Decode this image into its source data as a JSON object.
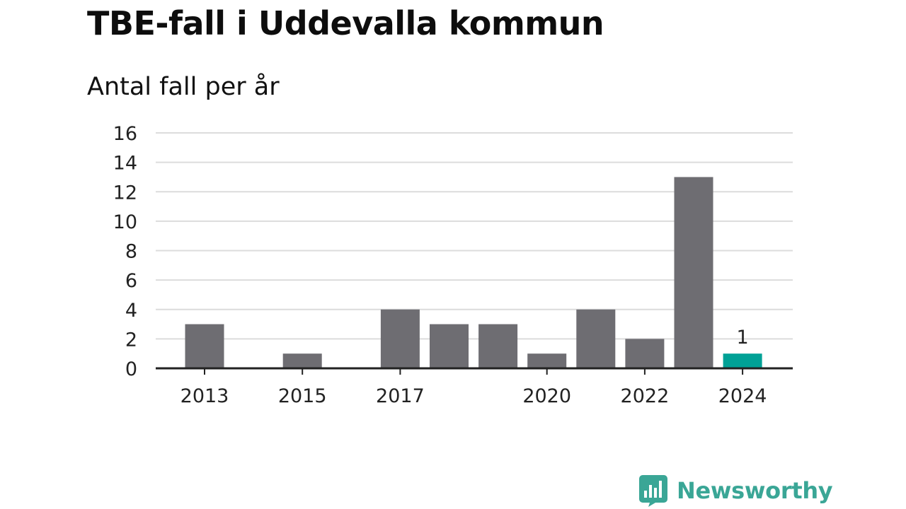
{
  "header": {
    "title": "TBE-fall i Uddevalla kommun",
    "subtitle": "Antal fall per år"
  },
  "brand": {
    "name": "Newsworthy",
    "color": "#3aa696"
  },
  "colors": {
    "bar": "#6e6d72",
    "highlight": "#00a196",
    "grid": "#dcdcdc",
    "axis": "#222222"
  },
  "chart_data": {
    "type": "bar",
    "title": "TBE-fall i Uddevalla kommun",
    "subtitle": "Antal fall per år",
    "xlabel": "",
    "ylabel": "",
    "categories": [
      "2013",
      "2014",
      "2015",
      "2016",
      "2017",
      "2018",
      "2019",
      "2020",
      "2021",
      "2022",
      "2023",
      "2024"
    ],
    "values": [
      3,
      0,
      1,
      0,
      4,
      3,
      3,
      1,
      4,
      2,
      13,
      1
    ],
    "x_tick_labels": [
      "2013",
      "2015",
      "2017",
      "2020",
      "2022",
      "2024"
    ],
    "y_ticks": [
      0,
      2,
      4,
      6,
      8,
      10,
      12,
      14,
      16
    ],
    "ylim": [
      0,
      16
    ],
    "grid": true,
    "legend": "none",
    "highlight_category": "2024",
    "data_labels": [
      {
        "category": "2024",
        "text": "1"
      }
    ]
  }
}
